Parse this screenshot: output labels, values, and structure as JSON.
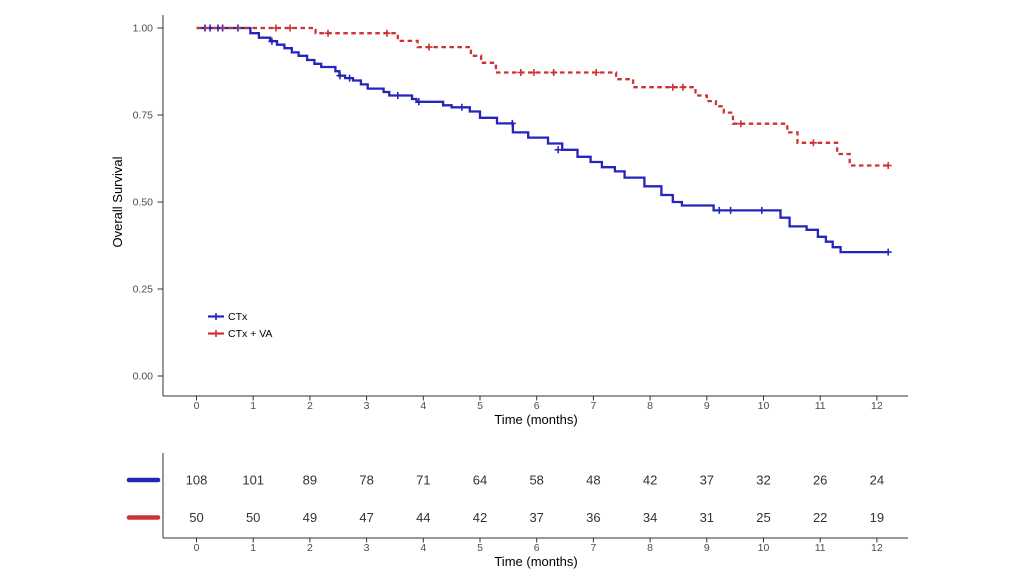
{
  "chart_data": {
    "type": "line",
    "subtype": "kaplan-meier-step",
    "title": "",
    "xlabel": "Time (months)",
    "ylabel": "Overall Survival",
    "xlim": [
      0,
      12.6
    ],
    "ylim": [
      0.0,
      1.0
    ],
    "grid": false,
    "legend_position": "inside-lower-left",
    "x_ticks": [
      0,
      1,
      2,
      3,
      4,
      5,
      6,
      7,
      8,
      9,
      10,
      11,
      12
    ],
    "y_ticks": [
      {
        "value": 0.0,
        "label": "0.00"
      },
      {
        "value": 0.25,
        "label": "0.25"
      },
      {
        "value": 0.5,
        "label": "0.50"
      },
      {
        "value": 0.75,
        "label": "0.75"
      },
      {
        "value": 1.0,
        "label": "1.00"
      }
    ],
    "series": [
      {
        "name": "CTx",
        "color": "#2525BA",
        "style": "solid",
        "steps": [
          [
            0,
            1.0
          ],
          [
            0.95,
            0.985
          ],
          [
            1.1,
            0.972
          ],
          [
            1.3,
            0.962
          ],
          [
            1.42,
            0.952
          ],
          [
            1.55,
            0.942
          ],
          [
            1.68,
            0.93
          ],
          [
            1.8,
            0.92
          ],
          [
            1.95,
            0.908
          ],
          [
            2.08,
            0.897
          ],
          [
            2.2,
            0.888
          ],
          [
            2.45,
            0.876
          ],
          [
            2.52,
            0.863
          ],
          [
            2.62,
            0.856
          ],
          [
            2.76,
            0.849
          ],
          [
            2.9,
            0.838
          ],
          [
            3.02,
            0.826
          ],
          [
            3.3,
            0.816
          ],
          [
            3.4,
            0.806
          ],
          [
            3.8,
            0.796
          ],
          [
            3.88,
            0.788
          ],
          [
            4.35,
            0.778
          ],
          [
            4.5,
            0.772
          ],
          [
            4.82,
            0.76
          ],
          [
            5.0,
            0.742
          ],
          [
            5.3,
            0.726
          ],
          [
            5.58,
            0.7
          ],
          [
            5.85,
            0.685
          ],
          [
            6.2,
            0.668
          ],
          [
            6.45,
            0.65
          ],
          [
            6.72,
            0.63
          ],
          [
            6.95,
            0.615
          ],
          [
            7.15,
            0.6
          ],
          [
            7.38,
            0.588
          ],
          [
            7.55,
            0.57
          ],
          [
            7.9,
            0.545
          ],
          [
            8.2,
            0.52
          ],
          [
            8.4,
            0.5
          ],
          [
            8.56,
            0.49
          ],
          [
            9.12,
            0.476
          ],
          [
            10.3,
            0.455
          ],
          [
            10.46,
            0.43
          ],
          [
            10.76,
            0.42
          ],
          [
            10.96,
            0.4
          ],
          [
            11.1,
            0.386
          ],
          [
            11.22,
            0.37
          ],
          [
            11.36,
            0.356
          ],
          [
            12.2,
            0.356
          ]
        ],
        "censors": [
          [
            0.15,
            1.0
          ],
          [
            0.24,
            1.0
          ],
          [
            0.38,
            1.0
          ],
          [
            0.46,
            1.0
          ],
          [
            0.73,
            1.0
          ],
          [
            1.33,
            0.962
          ],
          [
            2.53,
            0.863
          ],
          [
            2.7,
            0.856
          ],
          [
            3.55,
            0.806
          ],
          [
            3.92,
            0.788
          ],
          [
            4.68,
            0.772
          ],
          [
            5.57,
            0.726
          ],
          [
            6.38,
            0.65
          ],
          [
            9.22,
            0.476
          ],
          [
            9.42,
            0.476
          ],
          [
            9.97,
            0.476
          ],
          [
            12.2,
            0.356
          ]
        ]
      },
      {
        "name": "CTx + VA",
        "color": "#CE3333",
        "style": "dashed",
        "steps": [
          [
            0,
            1.0
          ],
          [
            2.1,
            0.985
          ],
          [
            3.55,
            0.963
          ],
          [
            3.9,
            0.945
          ],
          [
            4.84,
            0.92
          ],
          [
            5.02,
            0.9
          ],
          [
            5.28,
            0.872
          ],
          [
            7.4,
            0.853
          ],
          [
            7.7,
            0.83
          ],
          [
            8.8,
            0.806
          ],
          [
            9.0,
            0.79
          ],
          [
            9.16,
            0.775
          ],
          [
            9.3,
            0.757
          ],
          [
            9.46,
            0.725
          ],
          [
            10.42,
            0.7
          ],
          [
            10.6,
            0.67
          ],
          [
            11.3,
            0.638
          ],
          [
            11.52,
            0.605
          ],
          [
            12.2,
            0.605
          ]
        ],
        "censors": [
          [
            1.4,
            1.0
          ],
          [
            1.65,
            1.0
          ],
          [
            2.32,
            0.985
          ],
          [
            3.36,
            0.985
          ],
          [
            4.1,
            0.945
          ],
          [
            5.72,
            0.872
          ],
          [
            5.95,
            0.872
          ],
          [
            6.3,
            0.872
          ],
          [
            7.05,
            0.872
          ],
          [
            8.4,
            0.83
          ],
          [
            8.58,
            0.83
          ],
          [
            9.6,
            0.725
          ],
          [
            10.88,
            0.67
          ],
          [
            12.2,
            0.605
          ]
        ]
      }
    ],
    "risk_table": {
      "xlabel": "Time (months)",
      "x_ticks": [
        0,
        1,
        2,
        3,
        4,
        5,
        6,
        7,
        8,
        9,
        10,
        11,
        12
      ],
      "rows": [
        {
          "name": "CTx",
          "color": "#2525BA",
          "counts": [
            108,
            101,
            89,
            78,
            71,
            64,
            58,
            48,
            42,
            37,
            32,
            26,
            24
          ]
        },
        {
          "name": "CTx + VA",
          "color": "#CE3333",
          "counts": [
            50,
            50,
            49,
            47,
            44,
            42,
            37,
            36,
            34,
            31,
            25,
            22,
            19
          ]
        }
      ]
    }
  }
}
